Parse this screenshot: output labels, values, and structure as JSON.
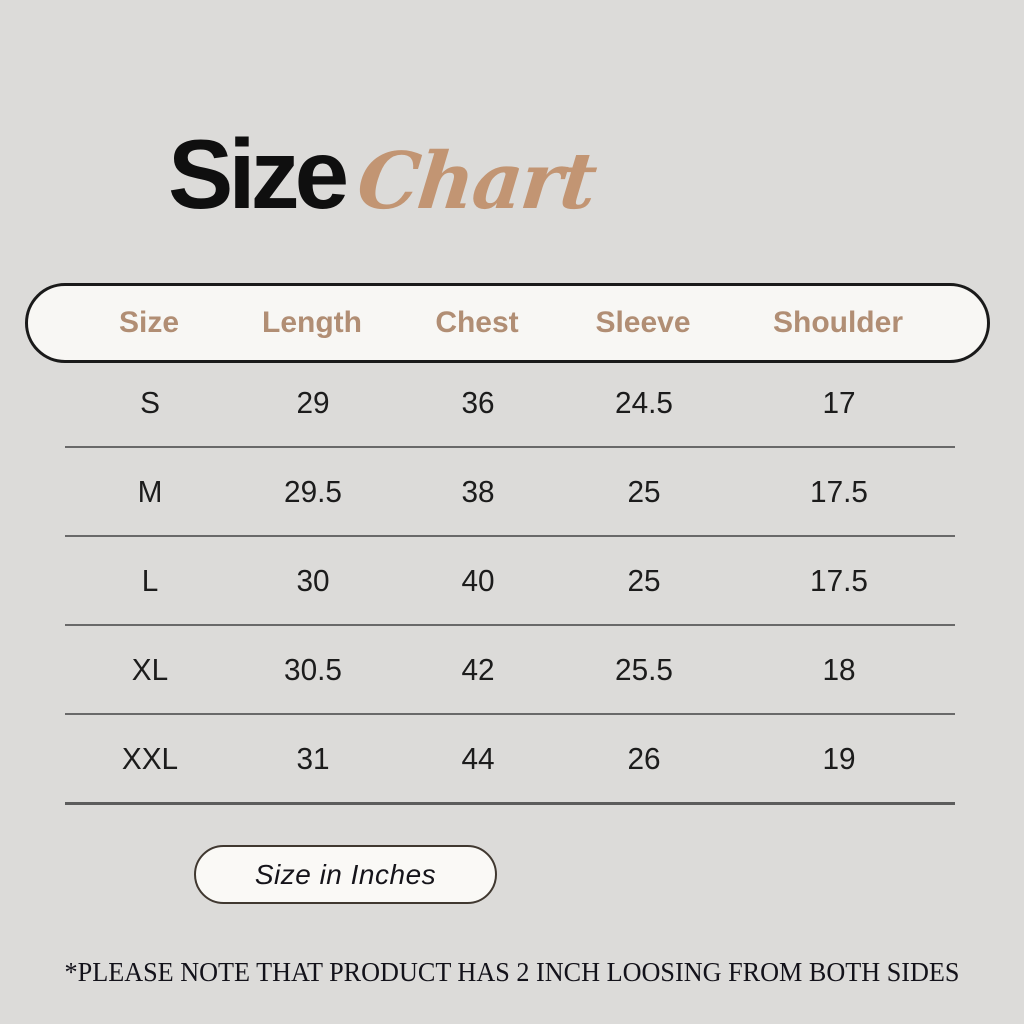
{
  "title": {
    "main": "Size",
    "script": "Chart"
  },
  "table": {
    "headers": [
      "Size",
      "Length",
      "Chest",
      "Sleeve",
      "Shoulder"
    ],
    "rows": [
      [
        "S",
        "29",
        "36",
        "24.5",
        "17"
      ],
      [
        "M",
        "29.5",
        "38",
        "25",
        "17.5"
      ],
      [
        "L",
        "30",
        "40",
        "25",
        "17.5"
      ],
      [
        "XL",
        "30.5",
        "42",
        "25.5",
        "18"
      ],
      [
        "XXL",
        "31",
        "44",
        "26",
        "19"
      ]
    ]
  },
  "badge": {
    "label": "Size in Inches"
  },
  "footnote": "*PLEASE NOTE THAT PRODUCT HAS 2 INCH LOOSING FROM BOTH SIDES",
  "colors": {
    "background": "#dcdbd9",
    "accent_tan": "#b18e74",
    "script_tan": "#c29573",
    "pill_background": "#f8f7f4",
    "pill_border": "#1a1a1a",
    "row_line": "#696969",
    "text": "#1c1c1c"
  },
  "chart_data": {
    "type": "table",
    "title": "Size Chart",
    "units": "Inches",
    "columns": [
      "Size",
      "Length",
      "Chest",
      "Sleeve",
      "Shoulder"
    ],
    "rows": [
      [
        "S",
        29,
        36,
        24.5,
        17
      ],
      [
        "M",
        29.5,
        38,
        25,
        17.5
      ],
      [
        "L",
        30,
        40,
        25,
        17.5
      ],
      [
        "XL",
        30.5,
        42,
        25.5,
        18
      ],
      [
        "XXL",
        31,
        44,
        26,
        19
      ]
    ],
    "note": "*PLEASE NOTE THAT PRODUCT HAS 2 INCH LOOSING FROM BOTH SIDES"
  }
}
